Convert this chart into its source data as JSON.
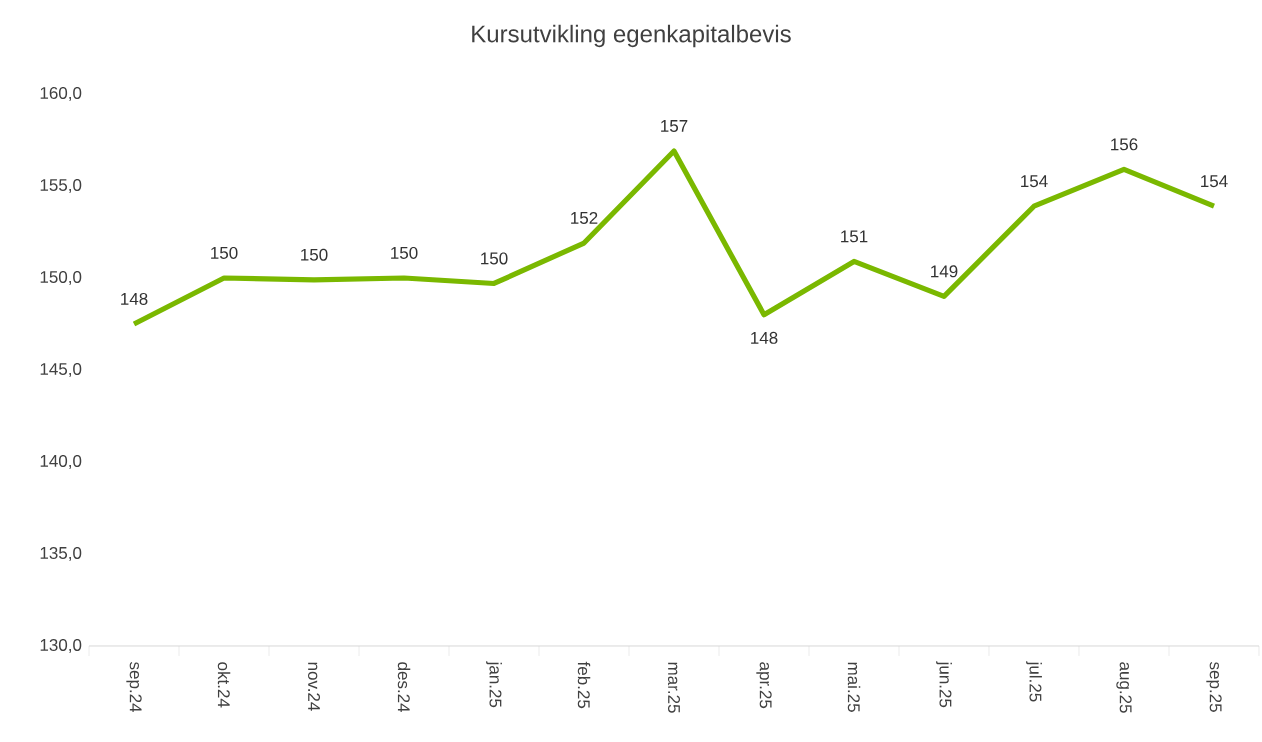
{
  "chart_data": {
    "type": "line",
    "title": "Kursutvikling egenkapitalbevis",
    "categories": [
      "sep.24",
      "okt.24",
      "nov.24",
      "des.24",
      "jan.25",
      "feb.25",
      "mar.25",
      "apr.25",
      "mai.25",
      "jun.25",
      "jul.25",
      "aug.25",
      "sep.25"
    ],
    "values": [
      147.5,
      150.0,
      149.9,
      150.0,
      149.7,
      151.9,
      156.9,
      148.0,
      150.9,
      149.0,
      153.9,
      155.9,
      153.9
    ],
    "value_labels": [
      "148",
      "150",
      "150",
      "150",
      "150",
      "152",
      "157",
      "148",
      "151",
      "149",
      "154",
      "156",
      "154"
    ],
    "color": "#7ab800",
    "ylim": [
      130,
      160
    ],
    "yticks": [
      {
        "value": 130,
        "label": "130,0"
      },
      {
        "value": 135,
        "label": "135,0"
      },
      {
        "value": 140,
        "label": "140,0"
      },
      {
        "value": 145,
        "label": "145,0"
      },
      {
        "value": 150,
        "label": "150,0"
      },
      {
        "value": 155,
        "label": "155,0"
      },
      {
        "value": 160,
        "label": "160,0"
      }
    ]
  }
}
